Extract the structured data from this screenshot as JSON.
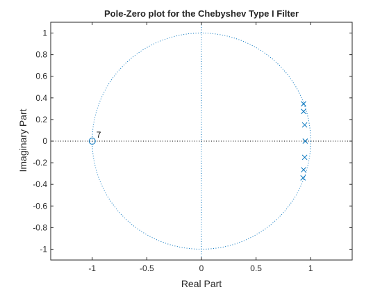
{
  "chart_data": {
    "type": "scatter",
    "title": "Pole-Zero plot for the Chebyshev Type I Filter",
    "xlabel": "Real Part",
    "ylabel": "Imaginary Part",
    "xlim": [
      -1.38,
      1.38
    ],
    "ylim": [
      -1.1,
      1.1
    ],
    "xticks": [
      -1,
      -0.5,
      0,
      0.5,
      1
    ],
    "xtick_labels": [
      "-1",
      "-0.5",
      "0",
      "0.5",
      "1"
    ],
    "yticks": [
      -1,
      -0.8,
      -0.6,
      -0.4,
      -0.2,
      0,
      0.2,
      0.4,
      0.6,
      0.8,
      1
    ],
    "ytick_labels": [
      "-1",
      "-0.8",
      "-0.6",
      "-0.4",
      "-0.2",
      "0",
      "0.2",
      "0.4",
      "0.6",
      "0.8",
      "1"
    ],
    "grid": false,
    "unit_circle": true,
    "zeros": [
      {
        "x": -1,
        "y": 0,
        "multiplicity_label": "7"
      }
    ],
    "poles": [
      {
        "x": 0.935,
        "y": 0.345
      },
      {
        "x": 0.935,
        "y": 0.275
      },
      {
        "x": 0.945,
        "y": 0.15
      },
      {
        "x": 0.95,
        "y": 0.0
      },
      {
        "x": 0.945,
        "y": -0.15
      },
      {
        "x": 0.935,
        "y": -0.265
      },
      {
        "x": 0.93,
        "y": -0.34
      }
    ],
    "colors": {
      "marker": "#0072bd",
      "axes": "#262626",
      "background": "#ffffff"
    }
  }
}
